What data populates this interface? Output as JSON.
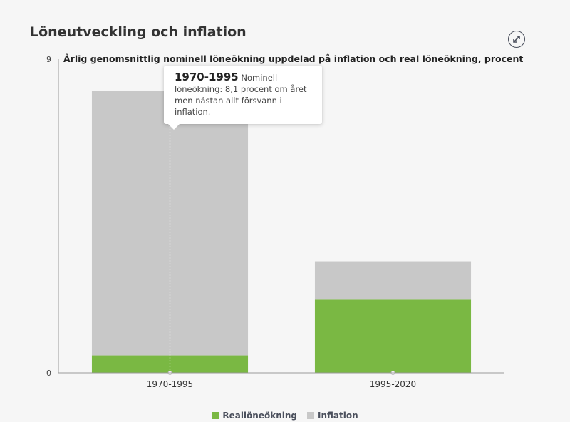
{
  "header": {
    "title": "Löneutveckling och inflation",
    "expand_icon": "expand-arrows-icon"
  },
  "tooltip": {
    "heading": "1970-1995",
    "text": "Nominell löneökning: 8,1 procent om året men nästan allt försvann i inflation."
  },
  "colors": {
    "real": "#7ab843",
    "inflation": "#c8c8c8",
    "axis": "#999999",
    "background": "#f6f6f6"
  },
  "chart_data": {
    "type": "bar",
    "stacked": true,
    "subtitle": "Årlig genomsnittlig nominell löneökning uppdelad på inflation och real löneökning, procent",
    "categories": [
      "1970-1995",
      "1995-2020"
    ],
    "series": [
      {
        "name": "Reallöneökning",
        "values": [
          0.5,
          2.1
        ]
      },
      {
        "name": "Inflation",
        "values": [
          7.6,
          1.1
        ]
      }
    ],
    "ylim": [
      0,
      9
    ],
    "yticks": [
      "0",
      "9"
    ],
    "legend_position": "bottom"
  }
}
